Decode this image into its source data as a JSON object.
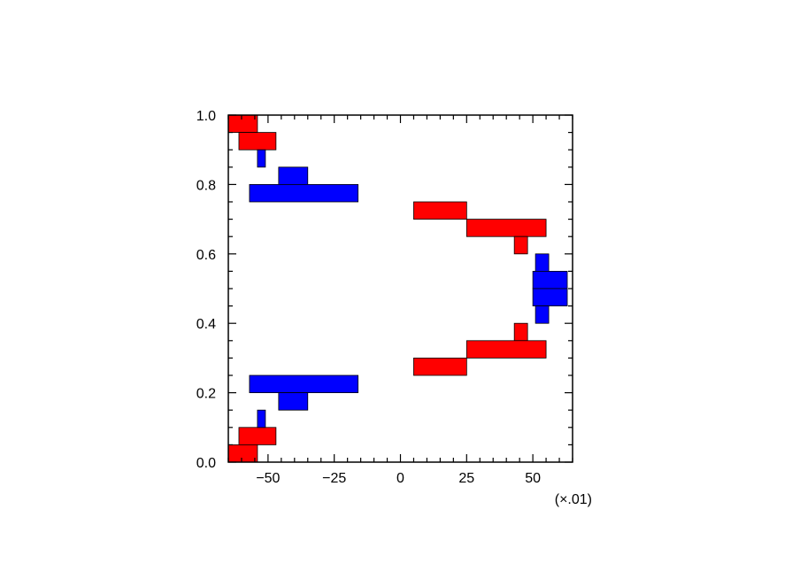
{
  "chart_data": {
    "type": "bar",
    "orientation": "horizontal-ranges",
    "xlim": [
      -65,
      65
    ],
    "ylim": [
      0,
      1
    ],
    "x_ticks": [
      -50,
      -25,
      0,
      25,
      50
    ],
    "x_tick_labels": [
      "−50",
      "−25",
      "0",
      "25",
      "50"
    ],
    "y_ticks": [
      0.0,
      0.2,
      0.4,
      0.6,
      0.8,
      1.0
    ],
    "y_tick_labels": [
      "0.0",
      "0.2",
      "0.4",
      "0.6",
      "0.8",
      "1.0"
    ],
    "x_multiplier": "(×.01)",
    "grid": false,
    "colors": {
      "red": "#ff0000",
      "blue": "#0000ff",
      "outline": "#000000"
    },
    "series": [
      {
        "color": "red",
        "bars": [
          {
            "x0": -65,
            "x1": -54,
            "y0": 0.95,
            "y1": 1.0
          },
          {
            "x0": -61,
            "x1": -47,
            "y0": 0.9,
            "y1": 0.95
          },
          {
            "x0": 5,
            "x1": 25,
            "y0": 0.7,
            "y1": 0.75
          },
          {
            "x0": 25,
            "x1": 55,
            "y0": 0.65,
            "y1": 0.7
          },
          {
            "x0": 43,
            "x1": 48,
            "y0": 0.6,
            "y1": 0.65
          },
          {
            "x0": 43,
            "x1": 48,
            "y0": 0.35,
            "y1": 0.4
          },
          {
            "x0": 25,
            "x1": 55,
            "y0": 0.3,
            "y1": 0.35
          },
          {
            "x0": 5,
            "x1": 25,
            "y0": 0.25,
            "y1": 0.3
          },
          {
            "x0": -61,
            "x1": -47,
            "y0": 0.05,
            "y1": 0.1
          },
          {
            "x0": -65,
            "x1": -54,
            "y0": 0.0,
            "y1": 0.05
          }
        ]
      },
      {
        "color": "blue",
        "bars": [
          {
            "x0": -54,
            "x1": -51,
            "y0": 0.85,
            "y1": 0.9
          },
          {
            "x0": -46,
            "x1": -35,
            "y0": 0.8,
            "y1": 0.85
          },
          {
            "x0": -57,
            "x1": -16,
            "y0": 0.75,
            "y1": 0.8
          },
          {
            "x0": 51,
            "x1": 56,
            "y0": 0.55,
            "y1": 0.6
          },
          {
            "x0": 50,
            "x1": 63,
            "y0": 0.5,
            "y1": 0.55
          },
          {
            "x0": 50,
            "x1": 63,
            "y0": 0.45,
            "y1": 0.5
          },
          {
            "x0": 51,
            "x1": 56,
            "y0": 0.4,
            "y1": 0.45
          },
          {
            "x0": -57,
            "x1": -16,
            "y0": 0.2,
            "y1": 0.25
          },
          {
            "x0": -46,
            "x1": -35,
            "y0": 0.15,
            "y1": 0.2
          },
          {
            "x0": -54,
            "x1": -51,
            "y0": 0.1,
            "y1": 0.15
          }
        ]
      }
    ]
  }
}
